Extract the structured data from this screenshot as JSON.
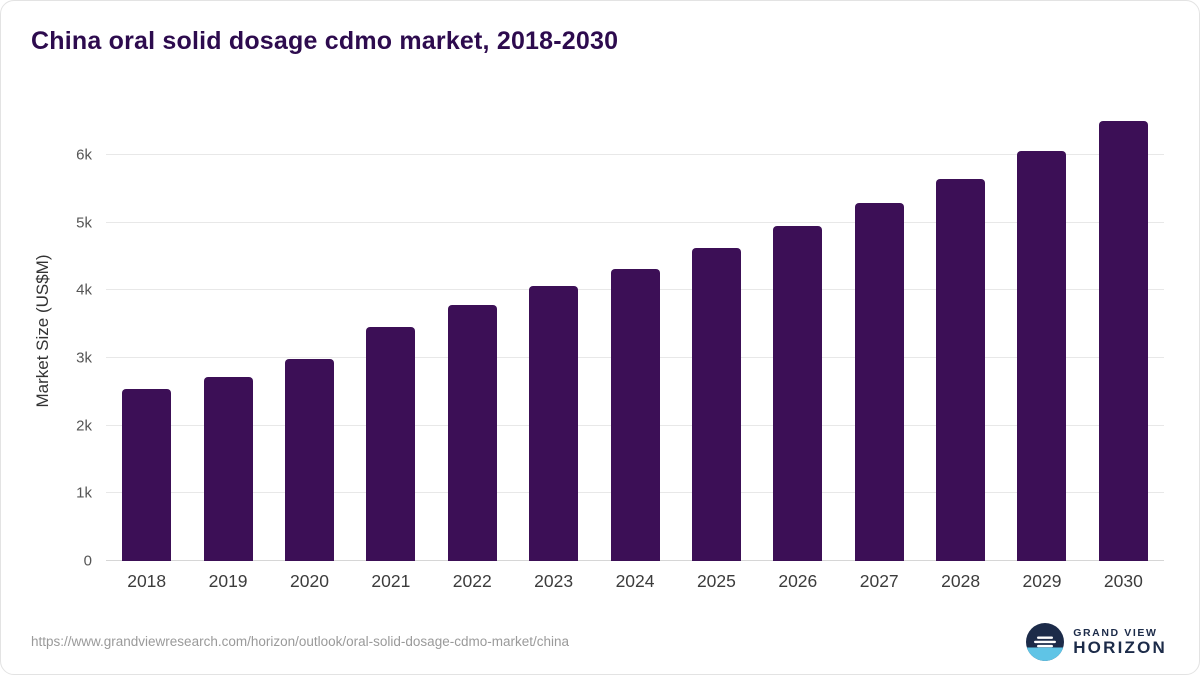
{
  "chart_data": {
    "type": "bar",
    "title": "China oral solid dosage cdmo market, 2018-2030",
    "ylabel": "Market Size (US$M)",
    "xlabel": "",
    "categories": [
      "2018",
      "2019",
      "2020",
      "2021",
      "2022",
      "2023",
      "2024",
      "2025",
      "2026",
      "2027",
      "2028",
      "2029",
      "2030"
    ],
    "values": [
      2550,
      2720,
      2980,
      3460,
      3790,
      4070,
      4320,
      4620,
      4950,
      5290,
      5650,
      6060,
      6500
    ],
    "ylim": [
      0,
      6800
    ],
    "yticks": [
      0,
      1000,
      2000,
      3000,
      4000,
      5000,
      6000
    ],
    "ytick_labels": [
      "0",
      "1k",
      "2k",
      "3k",
      "4k",
      "5k",
      "6k"
    ],
    "grid": "horizontal",
    "legend": "none",
    "bar_color": "#3c0f56"
  },
  "footer": {
    "source_url": "https://www.grandviewresearch.com/horizon/outlook/oral-solid-dosage-cdmo-market/china",
    "logo_line1": "GRAND VIEW",
    "logo_line2": "HORIZON"
  }
}
